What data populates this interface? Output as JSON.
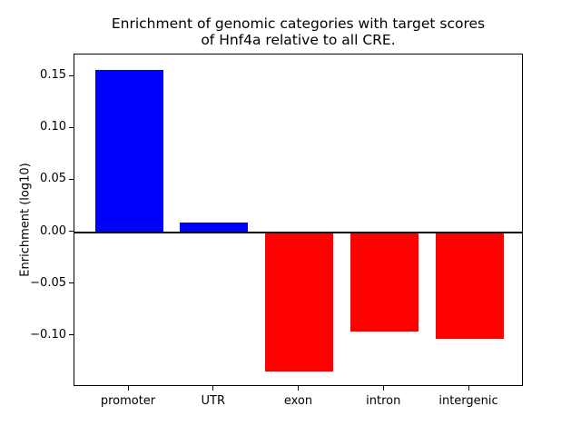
{
  "chart_data": {
    "type": "bar",
    "title": "Enrichment of genomic categories with target scores\nof Hnf4a relative to all CRE.",
    "xlabel": "",
    "ylabel": "Enrichment (log10)",
    "categories": [
      "promoter",
      "UTR",
      "exon",
      "intron",
      "intergenic"
    ],
    "values": [
      0.156,
      0.009,
      -0.134,
      -0.096,
      -0.103
    ],
    "bar_colors": [
      "#0000ff",
      "#0000ff",
      "#ff0000",
      "#ff0000",
      "#ff0000"
    ],
    "positive_color": "#0000ff",
    "negative_color": "#ff0000",
    "bar_width": 0.8,
    "ylim": [
      -0.149,
      0.171
    ],
    "xlim": [
      -0.64,
      4.64
    ],
    "yticks": [
      0.15,
      0.1,
      0.05,
      0.0,
      -0.05,
      -0.1
    ],
    "ytick_labels": [
      "0.15",
      "0.10",
      "0.05",
      "0.00",
      "−0.05",
      "−0.10"
    ],
    "zero_line": true,
    "grid": false,
    "legend": null,
    "frame_color": "#000000",
    "background_color": "#ffffff"
  }
}
